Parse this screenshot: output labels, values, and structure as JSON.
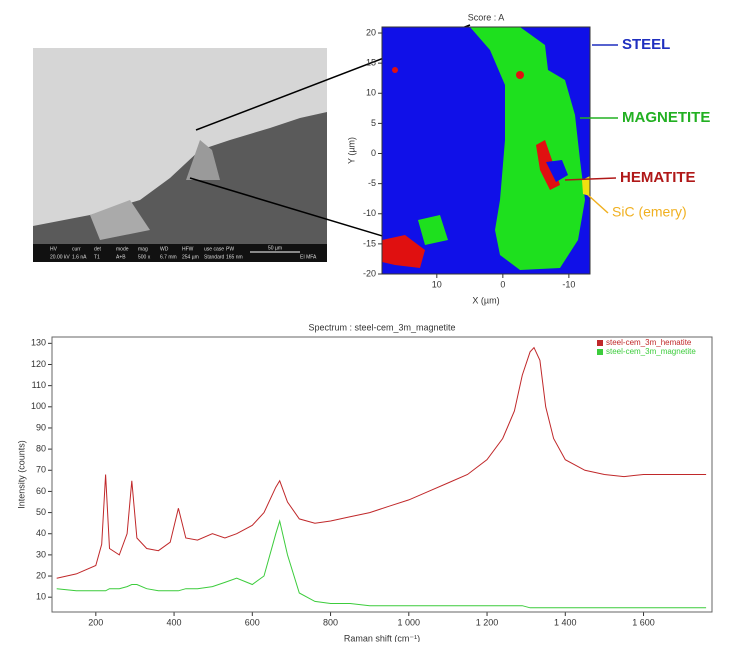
{
  "sem_image": {
    "info": [
      "HV",
      "curr",
      "det",
      "mode",
      "mag",
      "WD",
      "HFW",
      "use case",
      "PW",
      "20.00 kV",
      "1.6 nA",
      "T1",
      "A+B",
      "500 x",
      "6.7 mm",
      "254 µm",
      "Standard",
      "165 nm"
    ],
    "scale": "50 µm",
    "lab": "EI MFA"
  },
  "chart_data": [
    {
      "type": "map",
      "title": "Score : A",
      "x_label": "X (µm)",
      "y_label": "Y (µm)",
      "xlim": [
        18.3,
        -13.2
      ],
      "xticks": [
        10,
        0,
        -10
      ],
      "ylim": [
        -20,
        21
      ],
      "yticks": [
        -20,
        -15,
        -10,
        -5,
        0,
        5,
        10,
        15,
        20
      ],
      "annotations": [
        {
          "text": "STEEL",
          "color": "#1f2fbf"
        },
        {
          "text": "MAGNETITE",
          "color": "#22b022"
        },
        {
          "text": "HEMATITE",
          "color": "#b01818"
        },
        {
          "text": "SiC (emery)",
          "color": "#f0b020"
        }
      ]
    },
    {
      "type": "line",
      "title": "Spectrum : steel-cem_3m_magnetite",
      "x_label": "Raman shift (cm⁻¹)",
      "y_label": "Intensity (counts)",
      "xlim": [
        88,
        1775
      ],
      "xticks": [
        {
          "value": 200,
          "label": "200"
        },
        {
          "value": 400,
          "label": "400"
        },
        {
          "value": 600,
          "label": "600"
        },
        {
          "value": 800,
          "label": "800"
        },
        {
          "value": 1000,
          "label": "1 000"
        },
        {
          "value": 1200,
          "label": "1 200"
        },
        {
          "value": 1400,
          "label": "1 400"
        },
        {
          "value": 1600,
          "label": "1 600"
        }
      ],
      "ylim": [
        3,
        133
      ],
      "yticks": [
        10,
        20,
        30,
        40,
        50,
        60,
        70,
        80,
        90,
        100,
        110,
        120,
        130
      ],
      "legend": "upper right",
      "x": [
        100,
        150,
        200,
        215,
        225,
        235,
        260,
        280,
        292,
        305,
        330,
        360,
        390,
        411,
        430,
        460,
        498,
        530,
        560,
        600,
        630,
        660,
        670,
        690,
        720,
        760,
        800,
        850,
        900,
        950,
        1000,
        1050,
        1100,
        1150,
        1200,
        1240,
        1270,
        1290,
        1310,
        1320,
        1335,
        1350,
        1370,
        1400,
        1450,
        1500,
        1550,
        1600,
        1650,
        1700,
        1760
      ],
      "series": [
        {
          "name": "steel-cem_3m_hematite",
          "color": "#c0282a",
          "values": [
            19,
            21,
            25,
            35,
            68,
            33,
            30,
            40,
            65,
            38,
            33,
            32,
            36,
            52,
            38,
            37,
            40,
            38,
            40,
            44,
            50,
            62,
            65,
            55,
            47,
            45,
            46,
            48,
            50,
            53,
            56,
            60,
            64,
            68,
            75,
            85,
            98,
            115,
            126,
            128,
            122,
            100,
            85,
            75,
            70,
            68,
            67,
            68,
            68,
            68,
            68
          ]
        },
        {
          "name": "steel-cem_3m_magnetite",
          "color": "#3ccc3c",
          "values": [
            14,
            13,
            13,
            13,
            13,
            14,
            14,
            15,
            16,
            16,
            14,
            13,
            13,
            13,
            14,
            14,
            15,
            17,
            19,
            16,
            20,
            40,
            46,
            30,
            12,
            8,
            7,
            7,
            6,
            6,
            6,
            6,
            6,
            6,
            6,
            6,
            6,
            6,
            5,
            5,
            5,
            5,
            5,
            5,
            5,
            5,
            5,
            5,
            5,
            5,
            5
          ]
        }
      ]
    }
  ]
}
